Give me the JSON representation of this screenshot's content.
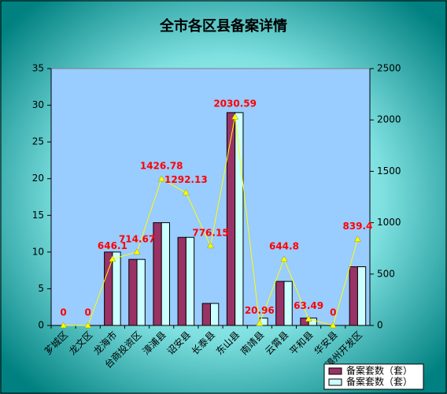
{
  "chart_data": {
    "type": "bar-line",
    "title": "全市各区县备案详情",
    "categories": [
      "芗城区",
      "龙文区",
      "龙海市",
      "台商投资区",
      "漳浦县",
      "诏安县",
      "长泰县",
      "东山县",
      "南靖县",
      "云霄县",
      "平和县",
      "华安县",
      "漳州开发区"
    ],
    "series": [
      {
        "name": "备案套数（套）",
        "color": "#993366",
        "values": [
          0,
          0,
          10,
          9,
          14,
          12,
          3,
          29,
          0,
          6,
          1,
          0,
          8
        ]
      },
      {
        "name": "备案套数（套）",
        "color": "#ccffff",
        "values": [
          0,
          0,
          10,
          9,
          14,
          12,
          3,
          29,
          1,
          6,
          1,
          0,
          8
        ]
      },
      {
        "type": "line",
        "axis": "y2",
        "color": "#ffff00",
        "label_color": "#ff0000",
        "values": [
          0,
          0,
          646.1,
          714.67,
          1426.78,
          1292.13,
          776.15,
          2030.59,
          20.96,
          644.8,
          63.49,
          0,
          839.4
        ]
      }
    ],
    "ylim": [
      0,
      35
    ],
    "yticks": [
      0,
      5,
      10,
      15,
      20,
      25,
      30,
      35
    ],
    "y2lim": [
      0,
      2500
    ],
    "y2ticks": [
      0,
      500,
      1000,
      1500,
      2000,
      2500
    ],
    "legend": "bottom-right"
  }
}
